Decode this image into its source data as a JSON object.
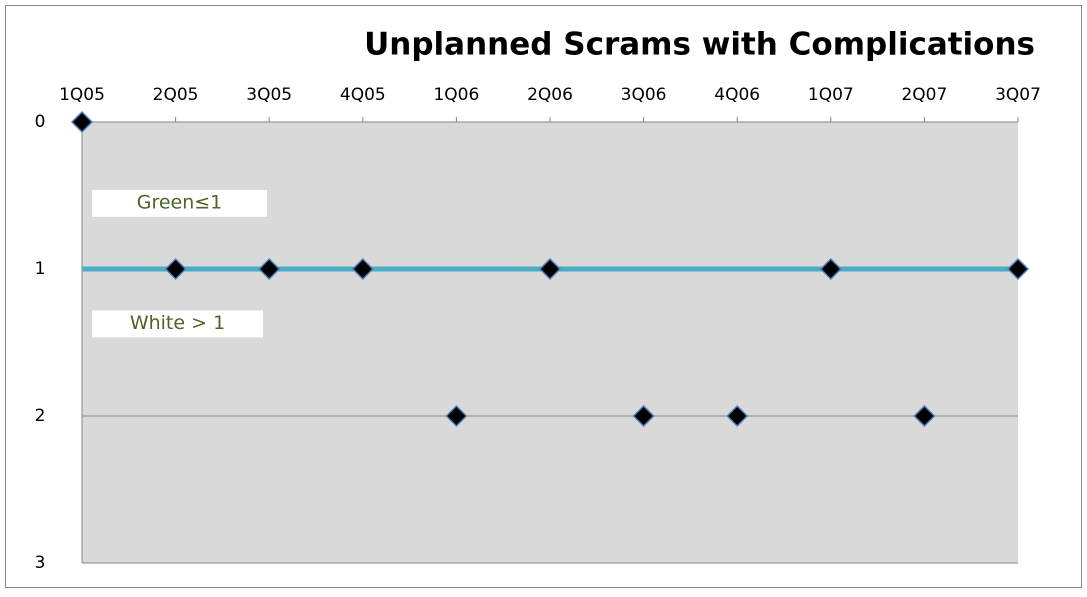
{
  "chart_data": {
    "type": "scatter",
    "title": "Unplanned Scrams with Complications",
    "categories": [
      "1Q05",
      "2Q05",
      "3Q05",
      "4Q05",
      "1Q06",
      "2Q06",
      "3Q06",
      "4Q06",
      "1Q07",
      "2Q07",
      "3Q07"
    ],
    "values": [
      0,
      1,
      1,
      1,
      2,
      1,
      2,
      2,
      1,
      2,
      1
    ],
    "color": "#000000",
    "marker_edge_color": "#4f81bd",
    "ylim": [
      0,
      3
    ],
    "yticks": [
      0,
      1,
      2,
      3
    ],
    "y_inverted": true,
    "grid": true,
    "plot_background": "#d9d9d9",
    "threshold": {
      "value": 1,
      "color": "#4bacc6"
    },
    "annotations": [
      "Green≤1",
      "White > 1"
    ],
    "annotation_color": "#4f6228"
  }
}
